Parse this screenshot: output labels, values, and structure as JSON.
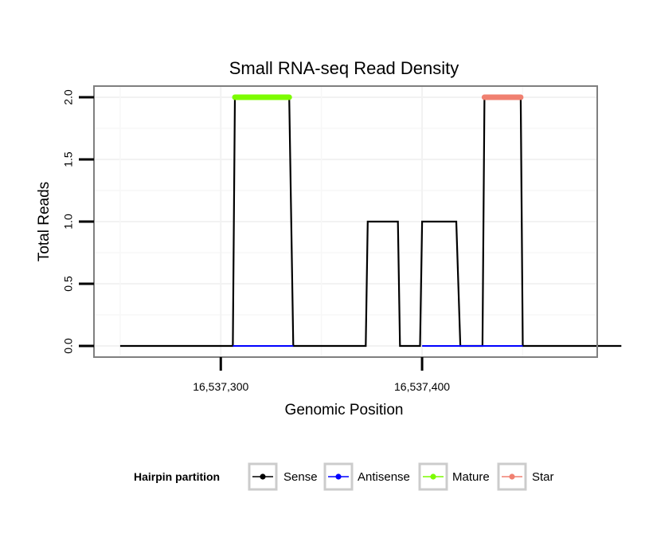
{
  "chart_data": {
    "type": "line",
    "title": "Small RNA-seq Read Density",
    "xlabel": "Genomic Position",
    "ylabel": "Total Reads",
    "xlim": [
      16537237,
      16537487
    ],
    "ylim": [
      -0.09,
      2.09
    ],
    "x_ticks": [
      {
        "value": 16537300,
        "label": "16,537,300"
      },
      {
        "value": 16537400,
        "label": "16,537,400"
      }
    ],
    "y_ticks": [
      {
        "value": 0,
        "label": "0.0"
      },
      {
        "value": 0.5,
        "label": "0.5"
      },
      {
        "value": 1,
        "label": "1.0"
      },
      {
        "value": 1.5,
        "label": "1.5"
      },
      {
        "value": 2,
        "label": "2.0"
      }
    ],
    "grid": true,
    "legend": {
      "title": "Hairpin partition",
      "position": "bottom",
      "entries": [
        {
          "name": "Sense",
          "color": "#000000"
        },
        {
          "name": "Antisense",
          "color": "#0000ff"
        },
        {
          "name": "Mature",
          "color": "#7cfc00"
        },
        {
          "name": "Star",
          "color": "#f08070"
        }
      ]
    },
    "series": [
      {
        "name": "Sense",
        "color": "#000000",
        "x": [
          16537250,
          16537306,
          16537307,
          16537334,
          16537336,
          16537372,
          16537373,
          16537388,
          16537389,
          16537399,
          16537400,
          16537417,
          16537419,
          16537430,
          16537431,
          16537449,
          16537450,
          16537499
        ],
        "y": [
          0,
          0,
          2,
          2,
          0,
          0,
          1,
          1,
          0,
          0,
          1,
          1,
          0,
          0,
          2,
          2,
          0,
          0
        ]
      },
      {
        "name": "Antisense",
        "color": "#0000ff",
        "x": [
          16537306,
          16537336,
          16537372,
          16537389,
          16537400,
          16537419,
          16537431,
          16537450
        ],
        "y": [
          0,
          0,
          null,
          null,
          0,
          0,
          0,
          0
        ]
      },
      {
        "name": "Mature",
        "color": "#7cfc00",
        "x": [
          16537307,
          16537334
        ],
        "y": [
          2,
          2
        ]
      },
      {
        "name": "Star",
        "color": "#f08070",
        "x": [
          16537431,
          16537449
        ],
        "y": [
          2,
          2
        ]
      }
    ]
  }
}
